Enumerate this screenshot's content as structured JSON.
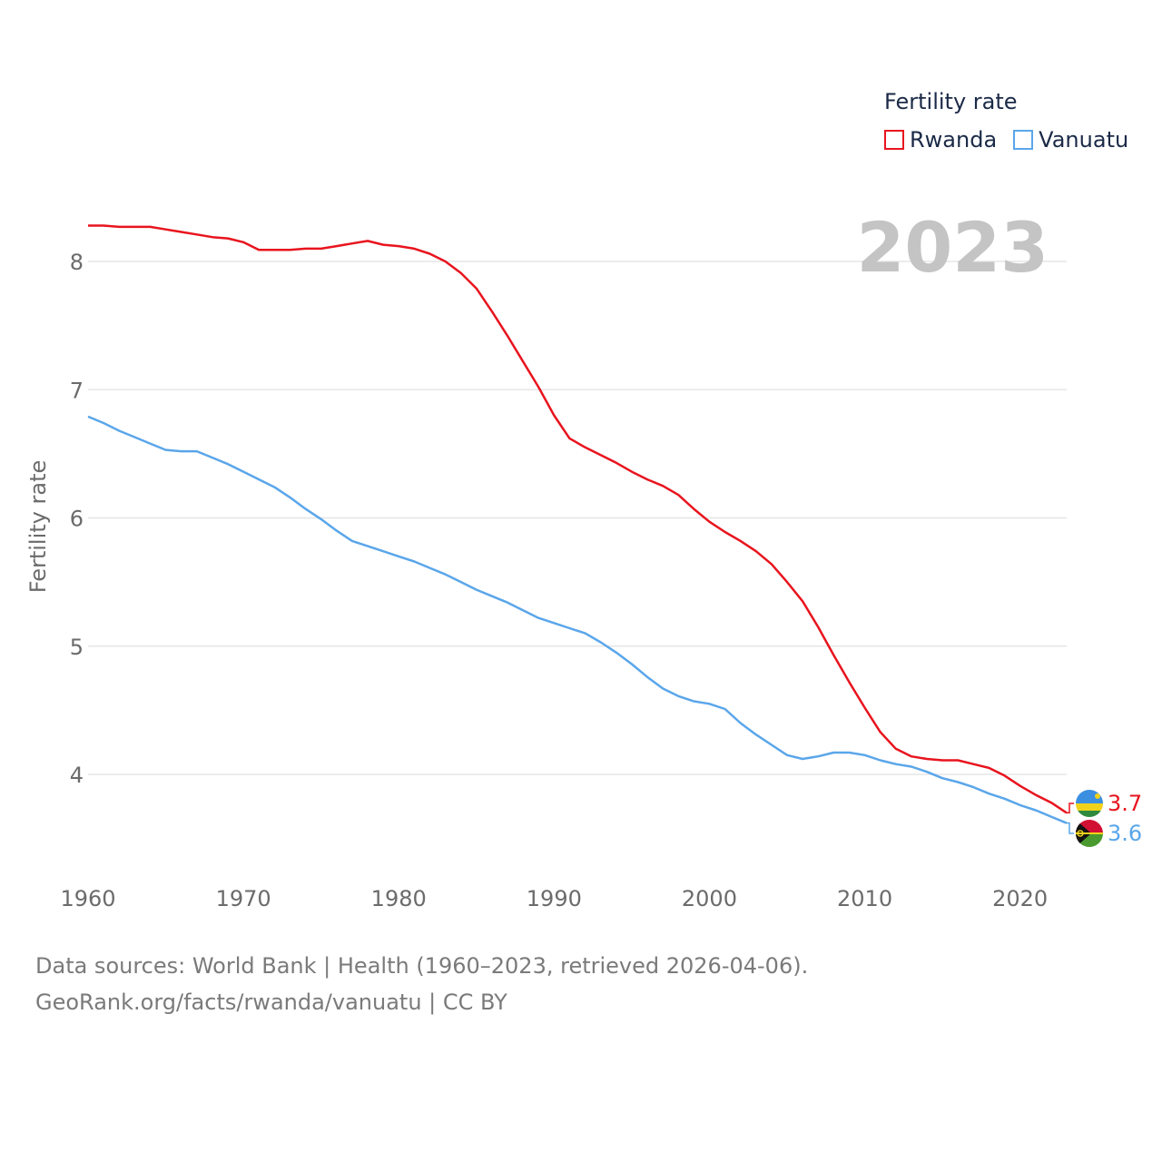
{
  "legend": {
    "title": "Fertility rate",
    "items": [
      {
        "label": "Rwanda",
        "color": "#e8141e"
      },
      {
        "label": "Vanuatu",
        "color": "#5aa6ea"
      }
    ]
  },
  "year_label": "2023",
  "footer": {
    "sources": "Data sources: World Bank | Health (1960–2023, retrieved 2026-04-06).",
    "attribution": "GeoRank.org/facts/rwanda/vanuatu | CC BY"
  },
  "chart_data": {
    "type": "line",
    "title": "",
    "xlabel": "",
    "ylabel": "Fertility rate",
    "xlim": [
      1960,
      2024
    ],
    "ylim": [
      3.45,
      8.6
    ],
    "x_ticks": [
      1960,
      1970,
      1980,
      1990,
      2000,
      2010,
      2020
    ],
    "y_ticks": [
      4,
      5,
      6,
      7,
      8
    ],
    "grid": true,
    "legend_position": "top-right",
    "x": [
      1960,
      1961,
      1962,
      1963,
      1964,
      1965,
      1966,
      1967,
      1968,
      1969,
      1970,
      1971,
      1972,
      1973,
      1974,
      1975,
      1976,
      1977,
      1978,
      1979,
      1980,
      1981,
      1982,
      1983,
      1984,
      1985,
      1986,
      1987,
      1988,
      1989,
      1990,
      1991,
      1992,
      1993,
      1994,
      1995,
      1996,
      1997,
      1998,
      1999,
      2000,
      2001,
      2002,
      2003,
      2004,
      2005,
      2006,
      2007,
      2008,
      2009,
      2010,
      2011,
      2012,
      2013,
      2014,
      2015,
      2016,
      2017,
      2018,
      2019,
      2020,
      2021,
      2022,
      2023
    ],
    "series": [
      {
        "name": "Rwanda",
        "color": "#e8141e",
        "end_label": "3.7",
        "values": [
          8.28,
          8.28,
          8.27,
          8.27,
          8.27,
          8.25,
          8.23,
          8.21,
          8.19,
          8.18,
          8.15,
          8.09,
          8.09,
          8.09,
          8.1,
          8.1,
          8.12,
          8.14,
          8.16,
          8.13,
          8.12,
          8.1,
          8.06,
          8.0,
          7.91,
          7.79,
          7.61,
          7.42,
          7.22,
          7.02,
          6.8,
          6.62,
          6.55,
          6.49,
          6.43,
          6.36,
          6.3,
          6.25,
          6.18,
          6.07,
          5.97,
          5.89,
          5.82,
          5.74,
          5.64,
          5.5,
          5.35,
          5.15,
          4.93,
          4.72,
          4.52,
          4.33,
          4.2,
          4.14,
          4.12,
          4.11,
          4.11,
          4.08,
          4.05,
          3.99,
          3.91,
          3.84,
          3.78,
          3.7
        ]
      },
      {
        "name": "Vanuatu",
        "color": "#5aa6ea",
        "end_label": "3.6",
        "values": [
          6.79,
          6.74,
          6.68,
          6.63,
          6.58,
          6.53,
          6.52,
          6.52,
          6.47,
          6.42,
          6.36,
          6.3,
          6.24,
          6.16,
          6.07,
          5.99,
          5.9,
          5.82,
          5.78,
          5.74,
          5.7,
          5.66,
          5.61,
          5.56,
          5.5,
          5.44,
          5.39,
          5.34,
          5.28,
          5.22,
          5.18,
          5.14,
          5.1,
          5.03,
          4.95,
          4.86,
          4.76,
          4.67,
          4.61,
          4.57,
          4.55,
          4.51,
          4.4,
          4.31,
          4.23,
          4.15,
          4.12,
          4.14,
          4.17,
          4.17,
          4.15,
          4.11,
          4.08,
          4.06,
          4.02,
          3.97,
          3.94,
          3.9,
          3.85,
          3.81,
          3.76,
          3.72,
          3.67,
          3.62
        ]
      }
    ]
  }
}
